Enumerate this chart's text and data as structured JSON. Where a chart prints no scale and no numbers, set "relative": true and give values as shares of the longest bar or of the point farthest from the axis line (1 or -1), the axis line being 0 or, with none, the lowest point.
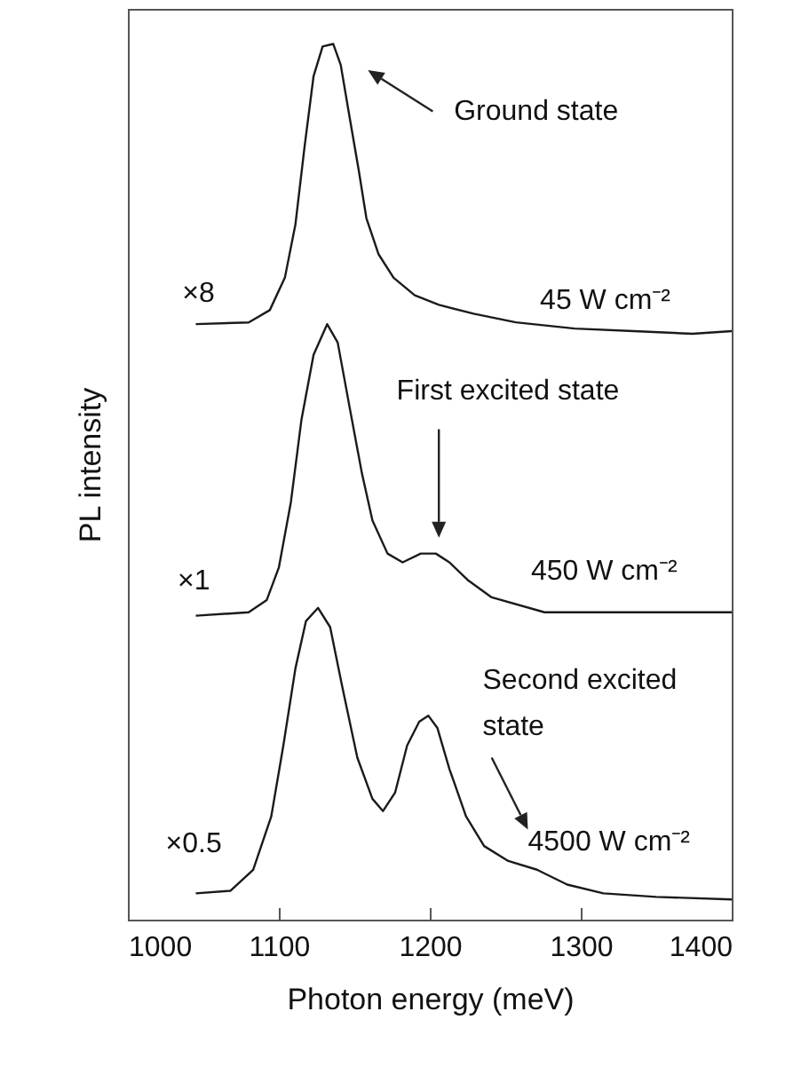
{
  "chart_data": {
    "type": "line",
    "relative": true,
    "xlabel": "Photon energy (meV)",
    "ylabel": "PL intensity",
    "xlim": [
      1000,
      1400
    ],
    "xticks": [
      1000,
      1100,
      1200,
      1300,
      1400
    ],
    "grid": false,
    "marker": "none",
    "line_style": "solid",
    "series": [
      {
        "color": "#1a1a1a",
        "x": [
          1045,
          1080,
          1094,
          1104,
          1111,
          1117,
          1123,
          1129,
          1136,
          1141,
          1147,
          1153,
          1158,
          1166,
          1176,
          1190,
          1206,
          1229,
          1257,
          1296,
          1335,
          1374,
          1400
        ],
        "values": [
          0.68,
          0.682,
          0.696,
          0.733,
          0.794,
          0.882,
          0.963,
          0.997,
          1.0,
          0.976,
          0.915,
          0.855,
          0.801,
          0.76,
          0.733,
          0.713,
          0.702,
          0.692,
          0.682,
          0.675,
          0.672,
          0.669,
          0.672
        ]
      },
      {
        "color": "#1a1a1a",
        "x": [
          1045,
          1080,
          1092,
          1100,
          1108,
          1115,
          1123,
          1132,
          1139,
          1147,
          1155,
          1162,
          1172,
          1182,
          1194,
          1204,
          1213,
          1225,
          1241,
          1276,
          1400
        ],
        "values": [
          0.347,
          0.351,
          0.365,
          0.402,
          0.477,
          0.571,
          0.645,
          0.68,
          0.659,
          0.584,
          0.51,
          0.456,
          0.418,
          0.408,
          0.418,
          0.418,
          0.408,
          0.388,
          0.368,
          0.351,
          0.351
        ]
      },
      {
        "color": "#1a1a1a",
        "x": [
          1045,
          1068,
          1083,
          1095,
          1103,
          1111,
          1118,
          1126,
          1134,
          1142,
          1152,
          1162,
          1169,
          1177,
          1185,
          1193,
          1199,
          1205,
          1213,
          1224,
          1236,
          1252,
          1271,
          1291,
          1315,
          1350,
          1400
        ],
        "values": [
          0.03,
          0.033,
          0.057,
          0.118,
          0.199,
          0.287,
          0.341,
          0.356,
          0.334,
          0.266,
          0.185,
          0.138,
          0.124,
          0.145,
          0.199,
          0.226,
          0.233,
          0.219,
          0.172,
          0.118,
          0.084,
          0.067,
          0.057,
          0.04,
          0.03,
          0.026,
          0.023
        ]
      }
    ],
    "annotations": [
      "Ground state",
      "×8",
      "45 W cm⁻²",
      "First excited state",
      "×1",
      "450 W cm⁻²",
      "Second excited state",
      "×0.5",
      "4500 W cm⁻²"
    ]
  }
}
